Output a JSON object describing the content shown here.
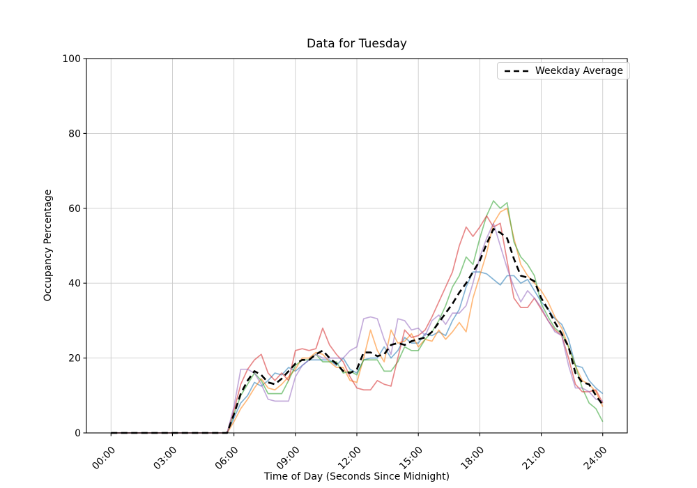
{
  "chart_data": {
    "type": "line",
    "title": "Data for Tuesday",
    "xlabel": "Time of Day (Seconds Since Midnight)",
    "ylabel": "Occupancy Percentage",
    "ylim": [
      0,
      100
    ],
    "xlim_seconds": [
      -4320,
      90720
    ],
    "grid": true,
    "x_step_seconds": 1200,
    "y_ticks": [
      0,
      20,
      40,
      60,
      80,
      100
    ],
    "x_ticks": [
      {
        "seconds": 0,
        "label": "00:00"
      },
      {
        "seconds": 10800,
        "label": "03:00"
      },
      {
        "seconds": 21600,
        "label": "06:00"
      },
      {
        "seconds": 32400,
        "label": "09:00"
      },
      {
        "seconds": 43200,
        "label": "12:00"
      },
      {
        "seconds": 54000,
        "label": "15:00"
      },
      {
        "seconds": 64800,
        "label": "18:00"
      },
      {
        "seconds": 75600,
        "label": "21:00"
      },
      {
        "seconds": 86400,
        "label": "24:00"
      }
    ],
    "legend": {
      "position": "upper-right",
      "entries": [
        {
          "label": "Weekday Average",
          "style": "dashed",
          "color": "#000000"
        }
      ]
    },
    "series": [
      {
        "name": "weekday-1",
        "color": "#1f77b4",
        "opacity": 0.55,
        "width": 1.7,
        "values": [
          0,
          0,
          0,
          0,
          0,
          0,
          0,
          0,
          0,
          0,
          0,
          0,
          0,
          0,
          0,
          0,
          0,
          0,
          4,
          8,
          10,
          13.5,
          12.5,
          14,
          16,
          15.5,
          17.5,
          16.5,
          18,
          19.5,
          19.5,
          19.5,
          19.5,
          18,
          20,
          17,
          16,
          19.5,
          20,
          20,
          23,
          20,
          22,
          25.5,
          24,
          24,
          26.5,
          26,
          27,
          26,
          30,
          33,
          39,
          43,
          43,
          42.5,
          41,
          39.5,
          42,
          42,
          40,
          41,
          38,
          35,
          33,
          30.5,
          29,
          25,
          18,
          17.5,
          14,
          12,
          10.5
        ]
      },
      {
        "name": "weekday-2",
        "color": "#ff7f0e",
        "opacity": 0.55,
        "width": 1.7,
        "values": [
          0,
          0,
          0,
          0,
          0,
          0,
          0,
          0,
          0,
          0,
          0,
          0,
          0,
          0,
          0,
          0,
          0,
          0,
          3,
          6.5,
          9,
          12,
          14.5,
          12,
          11.5,
          13,
          15,
          17,
          20,
          20,
          21.5,
          21,
          19,
          17.5,
          17.5,
          14,
          13.5,
          20,
          27.5,
          22,
          19,
          27.5,
          24,
          24.5,
          26.5,
          23,
          25,
          24.5,
          27.5,
          25,
          27,
          29.5,
          27,
          36,
          42,
          48,
          56,
          59,
          60,
          52,
          45,
          42,
          40,
          38,
          35,
          31,
          28,
          23,
          18,
          14,
          13,
          11,
          7
        ]
      },
      {
        "name": "weekday-3",
        "color": "#2ca02c",
        "opacity": 0.55,
        "width": 1.7,
        "values": [
          0,
          0,
          0,
          0,
          0,
          0,
          0,
          0,
          0,
          0,
          0,
          0,
          0,
          0,
          0,
          0,
          0,
          0,
          5,
          10,
          13,
          16,
          14,
          10.5,
          10.5,
          10.5,
          14,
          18,
          19.5,
          19.5,
          21,
          19,
          19,
          19,
          16,
          16.5,
          15.5,
          19.5,
          19.5,
          19.5,
          16.5,
          16.5,
          19,
          23,
          22,
          22,
          25,
          27,
          30,
          34,
          39,
          42,
          47,
          45,
          52,
          58,
          62,
          60,
          61.5,
          51,
          47,
          45,
          42,
          34.5,
          31,
          28,
          26.5,
          23,
          18,
          12,
          8,
          6.5,
          3
        ]
      },
      {
        "name": "weekday-4",
        "color": "#d62728",
        "opacity": 0.55,
        "width": 1.7,
        "values": [
          0,
          0,
          0,
          0,
          0,
          0,
          0,
          0,
          0,
          0,
          0,
          0,
          0,
          0,
          0,
          0,
          0,
          0,
          6,
          13,
          17,
          19.5,
          21,
          16,
          14,
          16,
          14,
          22,
          22.5,
          22,
          22.5,
          28,
          23.5,
          21,
          19,
          15,
          12,
          11.5,
          11.5,
          14,
          13,
          12.5,
          20,
          27.5,
          25.5,
          26,
          27.5,
          31,
          35,
          39,
          43,
          50,
          55,
          52.5,
          55,
          58,
          55,
          56,
          46,
          36,
          33.5,
          33.5,
          36,
          33,
          30,
          27.5,
          26,
          20,
          13,
          11,
          11,
          11.5,
          8
        ]
      },
      {
        "name": "weekday-5",
        "color": "#9467bd",
        "opacity": 0.55,
        "width": 1.7,
        "values": [
          0,
          0,
          0,
          0,
          0,
          0,
          0,
          0,
          0,
          0,
          0,
          0,
          0,
          0,
          0,
          0,
          0,
          0,
          7,
          17,
          17,
          16,
          13,
          9,
          8.5,
          8.5,
          8.5,
          15,
          18,
          19.5,
          21,
          20,
          20,
          20,
          20,
          22,
          23,
          30.5,
          31,
          30.5,
          25,
          21,
          30.5,
          30,
          27.5,
          28,
          26,
          30,
          31.5,
          29,
          32,
          32,
          34,
          40,
          47,
          52,
          56,
          50,
          44,
          39,
          35,
          38,
          36,
          33.5,
          30,
          27,
          26,
          18,
          12,
          12,
          11,
          9,
          8.5
        ]
      }
    ],
    "average_series": {
      "name": "Weekday Average",
      "color": "#000000",
      "width": 2.6,
      "dash": "9 5.5",
      "values": [
        0,
        0,
        0,
        0,
        0,
        0,
        0,
        0,
        0,
        0,
        0,
        0,
        0,
        0,
        0,
        0,
        0,
        0,
        5,
        10.5,
        14,
        16.5,
        15.5,
        13.5,
        13,
        14.5,
        16.5,
        18.5,
        19.5,
        19.5,
        21,
        22,
        20,
        18.5,
        16.5,
        16,
        17,
        21.5,
        21.5,
        20.5,
        21,
        23.5,
        24,
        23.5,
        24.5,
        25,
        25.5,
        27,
        29.5,
        32,
        34.5,
        37.5,
        40,
        43,
        46,
        50.5,
        54.5,
        53.5,
        52,
        46.5,
        42,
        41.5,
        40.5,
        36,
        33,
        29.5,
        26.5,
        23,
        16,
        13.5,
        13,
        10,
        7.5
      ]
    },
    "style": {
      "grid_color": "#cccccc",
      "spine_color": "#000000",
      "background": "#ffffff"
    }
  }
}
